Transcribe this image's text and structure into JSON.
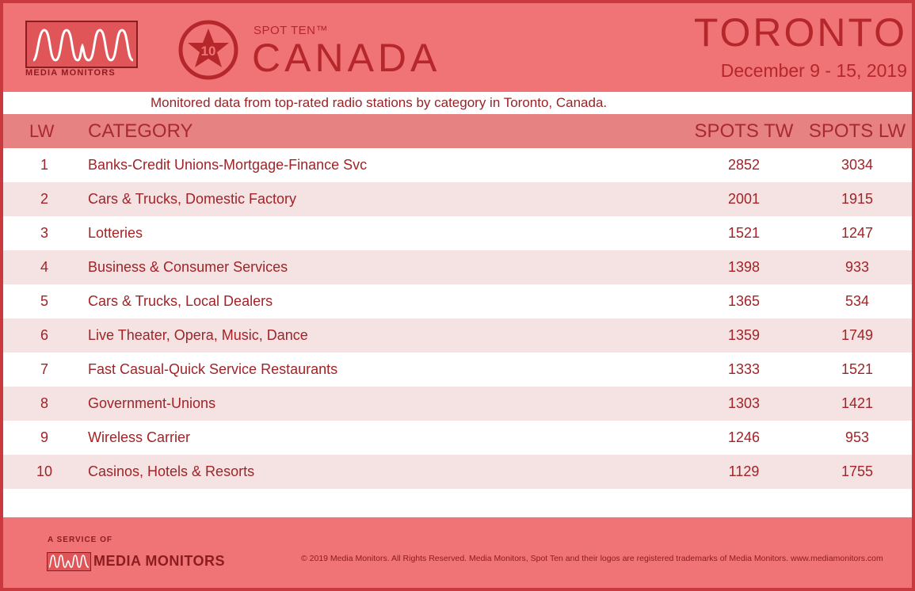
{
  "header": {
    "logo_text": "MEDIA MONITORS",
    "badge_number": "10",
    "spot_ten_label": "SPOT TEN™",
    "brand_title": "CANADA",
    "city": "TORONTO",
    "date_range": "December 9 - 15, 2019"
  },
  "subtitle": "Monitored data from top-rated radio stations by category in Toronto, Canada.",
  "table": {
    "columns": {
      "lw": "LW",
      "category": "CATEGORY",
      "spots_tw": "SPOTS TW",
      "spots_lw": "SPOTS LW"
    },
    "rows": [
      {
        "lw": "1",
        "category": "Banks-Credit Unions-Mortgage-Finance Svc",
        "spots_tw": "2852",
        "spots_lw": "3034"
      },
      {
        "lw": "2",
        "category": "Cars & Trucks, Domestic Factory",
        "spots_tw": "2001",
        "spots_lw": "1915"
      },
      {
        "lw": "3",
        "category": "Lotteries",
        "spots_tw": "1521",
        "spots_lw": "1247"
      },
      {
        "lw": "4",
        "category": "Business & Consumer Services",
        "spots_tw": "1398",
        "spots_lw": "933"
      },
      {
        "lw": "5",
        "category": "Cars & Trucks, Local Dealers",
        "spots_tw": "1365",
        "spots_lw": "534"
      },
      {
        "lw": "6",
        "category": "Live Theater, Opera, Music, Dance",
        "spots_tw": "1359",
        "spots_lw": "1749"
      },
      {
        "lw": "7",
        "category": "Fast Casual-Quick Service Restaurants",
        "spots_tw": "1333",
        "spots_lw": "1521"
      },
      {
        "lw": "8",
        "category": "Government-Unions",
        "spots_tw": "1303",
        "spots_lw": "1421"
      },
      {
        "lw": "9",
        "category": "Wireless Carrier",
        "spots_tw": "1246",
        "spots_lw": "953"
      },
      {
        "lw": "10",
        "category": "Casinos, Hotels & Resorts",
        "spots_tw": "1129",
        "spots_lw": "1755"
      }
    ]
  },
  "footer": {
    "service_of": "A SERVICE OF",
    "logo_text": "MEDIA MONITORS",
    "copyright": "© 2019 Media Monitors. All Rights Reserved. Media Monitors, Spot Ten and their logos are registered trademarks of Media Monitors. www.mediamonitors.com"
  },
  "colors": {
    "banner": "#f07475",
    "accent": "#b5272b",
    "row_alt": "#f5e2e2",
    "header_row": "#e78283"
  }
}
